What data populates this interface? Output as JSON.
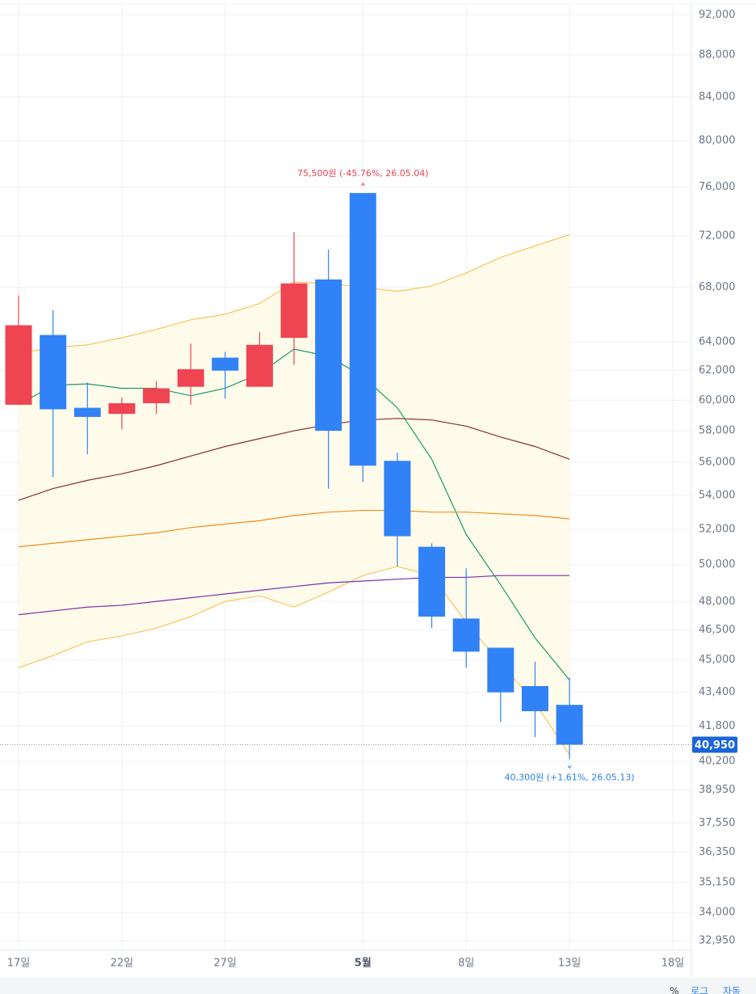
{
  "chart_data": {
    "type": "candlestick",
    "log_scale": true,
    "grid": true,
    "categories": [
      "17일",
      null,
      null,
      "22일",
      null,
      null,
      "27일",
      null,
      null,
      null,
      "5월",
      null,
      null,
      "8일",
      null,
      null,
      "13일",
      null,
      null,
      "18일"
    ],
    "emphasized_categories": [
      10
    ],
    "open": [
      59700,
      64500,
      59500,
      59100,
      59800,
      60900,
      62900,
      60900,
      64300,
      68600,
      75500,
      56100,
      51000,
      47100,
      45600,
      43700,
      42800,
      null,
      null,
      null
    ],
    "high": [
      67400,
      66300,
      61200,
      60200,
      61300,
      63900,
      63300,
      64700,
      72300,
      70900,
      75500,
      56600,
      51200,
      49800,
      45600,
      44900,
      44100,
      null,
      null,
      null
    ],
    "low": [
      59700,
      55100,
      56500,
      58100,
      59100,
      59700,
      60100,
      60900,
      62400,
      54400,
      54800,
      49900,
      46600,
      44600,
      42000,
      41300,
      40300,
      null,
      null,
      null
    ],
    "close": [
      65200,
      59400,
      58900,
      59800,
      60800,
      62100,
      62000,
      63800,
      68300,
      58000,
      55800,
      51600,
      47200,
      45400,
      43400,
      42500,
      40950,
      null,
      null,
      null
    ],
    "up_color": "#ef4452",
    "down_color": "#3182f6",
    "band_fill": "#fffbeb",
    "series": [
      {
        "color": "#f7c55a",
        "values": [
          63200,
          63600,
          63800,
          64300,
          64900,
          65600,
          66000,
          66800,
          68400,
          68300,
          68000,
          67700,
          68100,
          69100,
          70300,
          71200,
          72100,
          null,
          null,
          null
        ]
      },
      {
        "color": "#f7c55a",
        "values": [
          44600,
          45200,
          45900,
          46200,
          46600,
          47200,
          48000,
          48300,
          47700,
          48500,
          49400,
          49900,
          49400,
          46900,
          44800,
          42900,
          40500,
          null,
          null,
          null
        ]
      },
      {
        "color": "#1a9a6c",
        "values": [
          59700,
          61000,
          61100,
          60800,
          60800,
          60300,
          60800,
          61800,
          63500,
          63000,
          61600,
          59500,
          56200,
          51700,
          48900,
          46100,
          44000,
          null,
          null,
          null
        ]
      },
      {
        "color": "#8b2e2a",
        "values": [
          53700,
          54400,
          54900,
          55300,
          55800,
          56400,
          57000,
          57500,
          58000,
          58400,
          58700,
          58800,
          58700,
          58300,
          57600,
          57000,
          56200,
          null,
          null,
          null
        ]
      },
      {
        "color": "#f08c1c",
        "values": [
          51000,
          51200,
          51400,
          51600,
          51800,
          52100,
          52300,
          52500,
          52800,
          53000,
          53100,
          53100,
          53000,
          53000,
          52900,
          52800,
          52600,
          null,
          null,
          null
        ]
      },
      {
        "color": "#7b2fa6",
        "values": [
          47300,
          47500,
          47700,
          47800,
          48000,
          48200,
          48400,
          48600,
          48800,
          49000,
          49100,
          49200,
          49300,
          49300,
          49400,
          49400,
          49400,
          null,
          null,
          null
        ]
      }
    ],
    "ylim": [
      32600,
      93100
    ],
    "yticks": [
      {
        "value": 92000,
        "label": "92,000"
      },
      {
        "value": 88000,
        "label": "88,000"
      },
      {
        "value": 84000,
        "label": "84,000"
      },
      {
        "value": 80000,
        "label": "80,000"
      },
      {
        "value": 76000,
        "label": "76,000"
      },
      {
        "value": 72000,
        "label": "72,000"
      },
      {
        "value": 68000,
        "label": "68,000"
      },
      {
        "value": 64000,
        "label": "64,000"
      },
      {
        "value": 62000,
        "label": "62,000"
      },
      {
        "value": 60000,
        "label": "60,000"
      },
      {
        "value": 58000,
        "label": "58,000"
      },
      {
        "value": 56000,
        "label": "56,000"
      },
      {
        "value": 54000,
        "label": "54,000"
      },
      {
        "value": 52000,
        "label": "52,000"
      },
      {
        "value": 50000,
        "label": "50,000"
      },
      {
        "value": 48000,
        "label": "48,000"
      },
      {
        "value": 46500,
        "label": "46,500"
      },
      {
        "value": 45000,
        "label": "45,000"
      },
      {
        "value": 43400,
        "label": "43,400"
      },
      {
        "value": 41800,
        "label": "41,800"
      },
      {
        "value": 40200,
        "label": "40,200"
      },
      {
        "value": 38950,
        "label": "38,950"
      },
      {
        "value": 37550,
        "label": "37,550"
      },
      {
        "value": 36350,
        "label": "36,350"
      },
      {
        "value": 35150,
        "label": "35,150"
      },
      {
        "value": 34000,
        "label": "34,000"
      },
      {
        "value": 32950,
        "label": "32,950"
      }
    ],
    "last_price": {
      "value": 40950,
      "label": "40,950",
      "color": "#1b64da"
    },
    "annotations": [
      {
        "text": "75,500원 (-45.76%, 26.05.04)",
        "color": "#e8434f"
      },
      {
        "text": "40,300원 (+1.61%, 26.05.13)",
        "color": "#2f7fe0"
      }
    ]
  },
  "toolbar": [
    "%",
    "로그",
    "자동"
  ]
}
